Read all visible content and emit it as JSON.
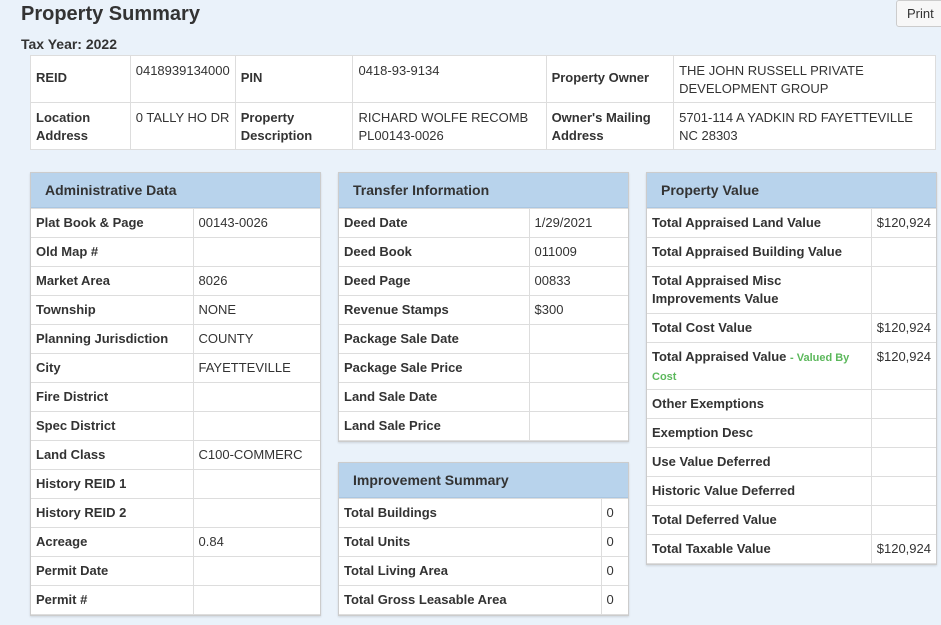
{
  "page": {
    "title": "Property Summary",
    "tax_year": "Tax Year: 2022",
    "print_label": "Print"
  },
  "summary": {
    "reid_label": "REID",
    "reid": "0418939134000",
    "pin_label": "PIN",
    "pin": "0418-93-9134",
    "owner_label": "Property Owner",
    "owner": "THE JOHN RUSSELL PRIVATE DEVELOPMENT GROUP",
    "location_label": "Location Address",
    "location": "0 TALLY HO DR",
    "description_label": "Property Description",
    "description": "RICHARD WOLFE RECOMB PL00143-0026",
    "mailing_label": "Owner's Mailing Address",
    "mailing": "5701-114 A YADKIN RD FAYETTEVILLE NC 28303"
  },
  "admin": {
    "title": "Administrative Data",
    "rows": [
      {
        "label": "Plat Book & Page",
        "value": "00143-0026"
      },
      {
        "label": "Old Map #",
        "value": ""
      },
      {
        "label": "Market Area",
        "value": "8026"
      },
      {
        "label": "Township",
        "value": "NONE"
      },
      {
        "label": "Planning Jurisdiction",
        "value": "COUNTY"
      },
      {
        "label": "City",
        "value": "FAYETTEVILLE"
      },
      {
        "label": "Fire District",
        "value": ""
      },
      {
        "label": "Spec District",
        "value": ""
      },
      {
        "label": "Land Class",
        "value": "C100-COMMERC"
      },
      {
        "label": "History REID 1",
        "value": ""
      },
      {
        "label": "History REID 2",
        "value": ""
      },
      {
        "label": "Acreage",
        "value": "0.84"
      },
      {
        "label": "Permit Date",
        "value": ""
      },
      {
        "label": "Permit #",
        "value": ""
      }
    ]
  },
  "transfer": {
    "title": "Transfer Information",
    "rows": [
      {
        "label": "Deed Date",
        "value": "1/29/2021"
      },
      {
        "label": "Deed Book",
        "value": "011009"
      },
      {
        "label": "Deed Page",
        "value": "00833"
      },
      {
        "label": "Revenue Stamps",
        "value": "$300"
      },
      {
        "label": "Package Sale Date",
        "value": ""
      },
      {
        "label": "Package Sale Price",
        "value": ""
      },
      {
        "label": "Land Sale Date",
        "value": ""
      },
      {
        "label": "Land Sale Price",
        "value": ""
      }
    ]
  },
  "improvement": {
    "title": "Improvement Summary",
    "rows": [
      {
        "label": "Total Buildings",
        "value": "0"
      },
      {
        "label": "Total Units",
        "value": "0"
      },
      {
        "label": "Total Living Area",
        "value": "0"
      },
      {
        "label": "Total Gross Leasable Area",
        "value": "0"
      }
    ]
  },
  "value": {
    "title": "Property Value",
    "valued_by_note": "- Valued By Cost",
    "rows": [
      {
        "label": "Total Appraised Land Value",
        "value": "$120,924"
      },
      {
        "label": "Total Appraised Building Value",
        "value": ""
      },
      {
        "label": "Total Appraised Misc Improvements Value",
        "value": ""
      },
      {
        "label": "Total Cost Value",
        "value": "$120,924"
      },
      {
        "label": "Total Appraised Value",
        "value": "$120,924"
      },
      {
        "label": "Other Exemptions",
        "value": ""
      },
      {
        "label": "Exemption Desc",
        "value": ""
      },
      {
        "label": "Use Value Deferred",
        "value": ""
      },
      {
        "label": "Historic Value Deferred",
        "value": ""
      },
      {
        "label": "Total Deferred Value",
        "value": ""
      },
      {
        "label": "Total Taxable Value",
        "value": "$120,924"
      }
    ]
  }
}
